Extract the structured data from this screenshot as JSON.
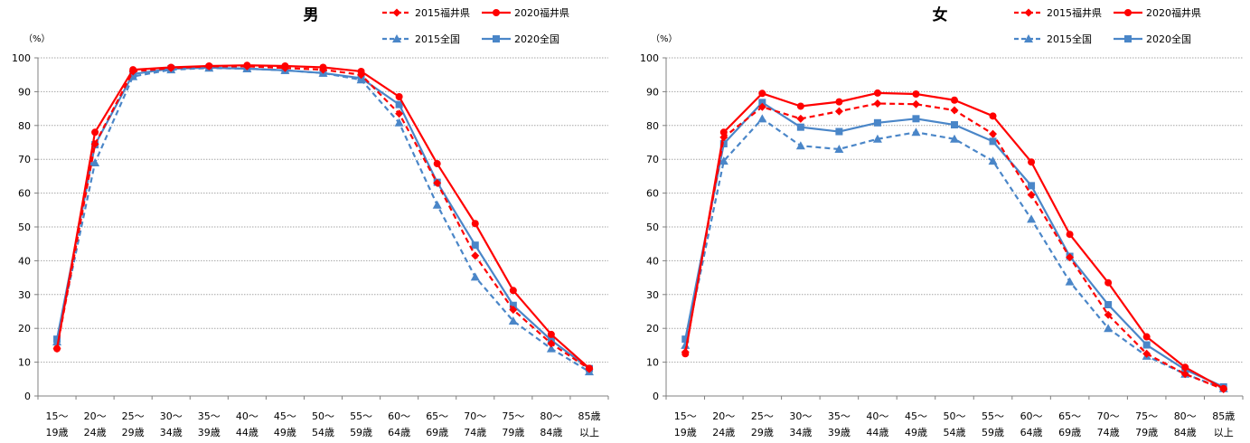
{
  "chart_data": [
    {
      "type": "line",
      "title": "男",
      "ylabel": "（%）",
      "ylim": [
        0,
        100
      ],
      "yticks": [
        "0",
        "10",
        "20",
        "30",
        "40",
        "50",
        "60",
        "70",
        "80",
        "90",
        "100"
      ],
      "categories": [
        [
          "15～",
          "19歳"
        ],
        [
          "20～",
          "24歳"
        ],
        [
          "25～",
          "29歳"
        ],
        [
          "30～",
          "34歳"
        ],
        [
          "35～",
          "39歳"
        ],
        [
          "40～",
          "44歳"
        ],
        [
          "45～",
          "49歳"
        ],
        [
          "50～",
          "54歳"
        ],
        [
          "55～",
          "59歳"
        ],
        [
          "60～",
          "64歳"
        ],
        [
          "65～",
          "69歳"
        ],
        [
          "70～",
          "74歳"
        ],
        [
          "75～",
          "79歳"
        ],
        [
          "80～",
          "84歳"
        ],
        [
          "85歳",
          "以上"
        ]
      ],
      "legend_position": "top-right",
      "grid": "horizontal-dotted",
      "series": [
        {
          "name": "2015福井県",
          "color": "#ff0000",
          "dash": true,
          "marker": "diamond",
          "values": [
            14,
            74.5,
            96,
            97,
            97.5,
            97.5,
            97,
            96.5,
            95,
            83.5,
            63,
            41.5,
            25.5,
            15.5,
            8
          ]
        },
        {
          "name": "2020福井県",
          "color": "#ff0000",
          "dash": false,
          "marker": "circle",
          "values": [
            14,
            78,
            96.5,
            97.2,
            97.6,
            97.8,
            97.6,
            97.2,
            96,
            88.5,
            68.7,
            51,
            31.2,
            18.2,
            8.2
          ]
        },
        {
          "name": "2015全国",
          "color": "#4a86c8",
          "dash": true,
          "marker": "triangle",
          "values": [
            16,
            69,
            94.5,
            96.5,
            97,
            96.8,
            96.3,
            95.5,
            93.5,
            80.8,
            56.5,
            35.2,
            22.2,
            14,
            7.2
          ]
        },
        {
          "name": "2020全国",
          "color": "#4a86c8",
          "dash": false,
          "marker": "square",
          "values": [
            16.8,
            74.3,
            95.2,
            96.8,
            97.1,
            96.8,
            96.3,
            95.5,
            94,
            86.2,
            63.2,
            44.6,
            26.8,
            16.5,
            8.1
          ]
        }
      ]
    },
    {
      "type": "line",
      "title": "女",
      "ylabel": "（%）",
      "ylim": [
        0,
        100
      ],
      "yticks": [
        "0",
        "10",
        "20",
        "30",
        "40",
        "50",
        "60",
        "70",
        "80",
        "90",
        "100"
      ],
      "categories": [
        [
          "15～",
          "19歳"
        ],
        [
          "20～",
          "24歳"
        ],
        [
          "25～",
          "29歳"
        ],
        [
          "30～",
          "34歳"
        ],
        [
          "35～",
          "39歳"
        ],
        [
          "40～",
          "44歳"
        ],
        [
          "45～",
          "49歳"
        ],
        [
          "50～",
          "54歳"
        ],
        [
          "55～",
          "59歳"
        ],
        [
          "60～",
          "64歳"
        ],
        [
          "65～",
          "69歳"
        ],
        [
          "70～",
          "74歳"
        ],
        [
          "75～",
          "79歳"
        ],
        [
          "80～",
          "84歳"
        ],
        [
          "85歳",
          "以上"
        ]
      ],
      "legend_position": "top-right",
      "grid": "horizontal-dotted",
      "series": [
        {
          "name": "2015福井県",
          "color": "#ff0000",
          "dash": true,
          "marker": "diamond",
          "values": [
            13,
            76.5,
            85.5,
            82,
            84.2,
            86.5,
            86.3,
            84.5,
            77.5,
            59.5,
            41,
            24,
            12.5,
            6.5,
            2
          ]
        },
        {
          "name": "2020福井県",
          "color": "#ff0000",
          "dash": false,
          "marker": "circle",
          "values": [
            12.5,
            78,
            89.5,
            85.7,
            87,
            89.6,
            89.3,
            87.5,
            82.8,
            69.2,
            47.8,
            33.5,
            17.5,
            8.5,
            2.2
          ]
        },
        {
          "name": "2015全国",
          "color": "#4a86c8",
          "dash": true,
          "marker": "triangle",
          "values": [
            15,
            69.5,
            82,
            74,
            73,
            76,
            78,
            76,
            69.5,
            52.3,
            33.8,
            20,
            11.8,
            6.5,
            2.2
          ]
        },
        {
          "name": "2020全国",
          "color": "#4a86c8",
          "dash": false,
          "marker": "square",
          "values": [
            16.8,
            74.6,
            86.8,
            79.5,
            78.2,
            80.8,
            82,
            80.2,
            75.3,
            62.2,
            41.3,
            27,
            15.1,
            7.8,
            2.7
          ]
        }
      ]
    }
  ]
}
